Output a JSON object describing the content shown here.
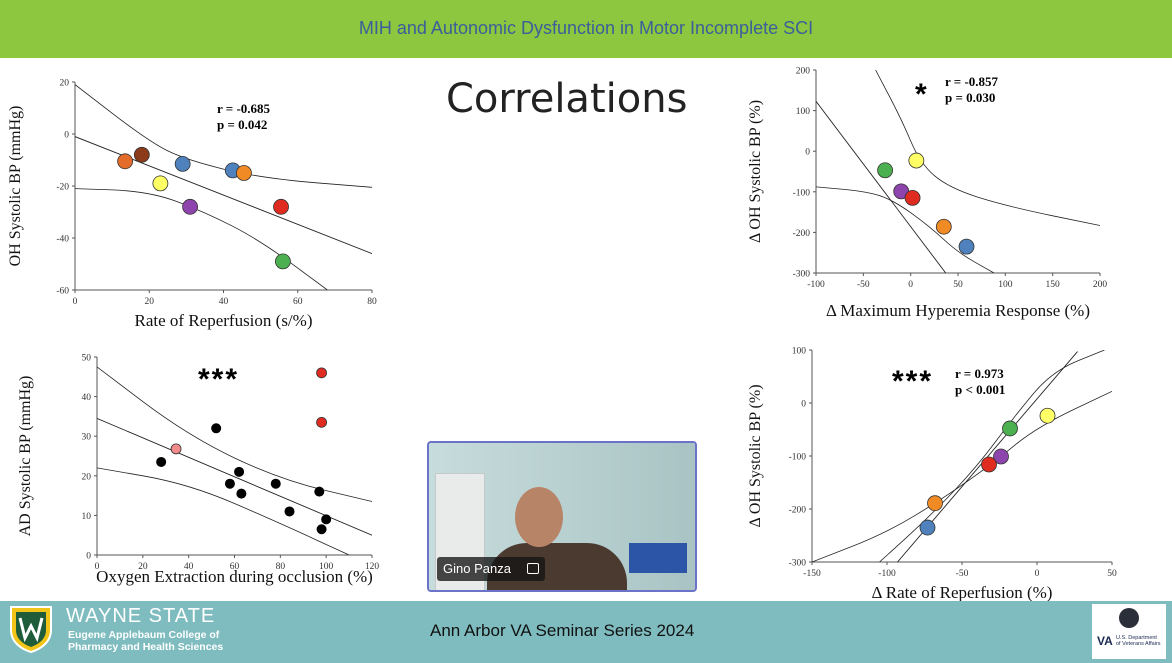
{
  "header": {
    "title": "MIH and Autonomic Dysfunction in Motor Incomplete SCI"
  },
  "slide_heading": "Correlations",
  "footer": {
    "university": "WAYNE STATE",
    "college_line1": "Eugene Applebaum College of",
    "college_line2": "Pharmacy and Health Sciences",
    "seminar": "Ann Arbor VA Seminar Series 2024",
    "va_logo_text": "VA",
    "va_dept_line1": "U.S. Department",
    "va_dept_line2": "of Veterans Affairs"
  },
  "video": {
    "participant_name": "Gino Panza"
  },
  "colors": {
    "header_green": "#8dc63f",
    "footer_teal": "#7fbcbf",
    "header_text": "#3a5f9a"
  },
  "chart_data": [
    {
      "id": "top-left",
      "type": "scatter",
      "xlabel": "Rate of Reperfusion (s/%)",
      "ylabel": "OH Systolic BP (mmHg)",
      "xlim": [
        0,
        80
      ],
      "ylim": [
        -60,
        20
      ],
      "xticks": [
        0,
        20,
        40,
        60,
        80
      ],
      "yticks": [
        -60,
        -40,
        -20,
        0,
        20
      ],
      "stats": [
        "r = -0.685",
        "p = 0.042"
      ],
      "stars": "",
      "points": [
        {
          "x": 13.5,
          "y": -10.5,
          "color": "#e46c2a"
        },
        {
          "x": 18,
          "y": -8,
          "color": "#8b3a1a"
        },
        {
          "x": 23,
          "y": -19,
          "color": "#ffff66"
        },
        {
          "x": 29,
          "y": -11.5,
          "color": "#4f81bd"
        },
        {
          "x": 31,
          "y": -28,
          "color": "#8e44ad"
        },
        {
          "x": 42.5,
          "y": -14,
          "color": "#4f81bd"
        },
        {
          "x": 45.5,
          "y": -15,
          "color": "#f08a24"
        },
        {
          "x": 55.5,
          "y": -28,
          "color": "#e02b20"
        },
        {
          "x": 56,
          "y": -49,
          "color": "#4caf50"
        }
      ],
      "fit_line": [
        [
          0,
          -1
        ],
        [
          80,
          -46
        ]
      ],
      "ci_upper": [
        [
          0,
          19
        ],
        [
          20,
          -3
        ],
        [
          30,
          -10
        ],
        [
          50,
          -17
        ],
        [
          80,
          -20.5
        ]
      ],
      "ci_lower": [
        [
          0,
          -21
        ],
        [
          20,
          -22
        ],
        [
          35,
          -30
        ],
        [
          50,
          -41
        ],
        [
          68,
          -60
        ]
      ]
    },
    {
      "id": "top-right",
      "type": "scatter",
      "xlabel": "Δ Maximum Hyperemia Response (%)",
      "ylabel": "Δ OH Systolic BP (%)",
      "xlim": [
        -100,
        200
      ],
      "ylim": [
        -300,
        200
      ],
      "xticks": [
        -100,
        -50,
        0,
        50,
        100,
        150,
        200
      ],
      "yticks": [
        -300,
        -200,
        -100,
        0,
        100,
        200
      ],
      "stats": [
        "r = -0.857",
        "p = 0.030"
      ],
      "stars": "*",
      "points": [
        {
          "x": -27,
          "y": -47,
          "color": "#4caf50"
        },
        {
          "x": 6,
          "y": -23,
          "color": "#ffff66"
        },
        {
          "x": -10,
          "y": -99,
          "color": "#8e44ad"
        },
        {
          "x": 2,
          "y": -115,
          "color": "#e02b20"
        },
        {
          "x": 35,
          "y": -186,
          "color": "#f08a24"
        },
        {
          "x": 59,
          "y": -235,
          "color": "#4f81bd"
        }
      ],
      "fit_line": [
        [
          -100,
          123
        ],
        [
          37,
          -300
        ]
      ],
      "ci_upper": [
        [
          -37,
          200
        ],
        [
          -10,
          80
        ],
        [
          10,
          -30
        ],
        [
          40,
          -90
        ],
        [
          100,
          -135
        ],
        [
          200,
          -183
        ]
      ],
      "ci_lower": [
        [
          -100,
          -88
        ],
        [
          -50,
          -98
        ],
        [
          -20,
          -118
        ],
        [
          20,
          -185
        ],
        [
          50,
          -250
        ],
        [
          88,
          -300
        ]
      ]
    },
    {
      "id": "bottom-left",
      "type": "scatter",
      "xlabel": "Oxygen Extraction during occlusion (%)",
      "ylabel": "AD Systolic BP (mmHg)",
      "xlim": [
        0,
        120
      ],
      "ylim": [
        0,
        50
      ],
      "xticks": [
        0,
        20,
        40,
        60,
        80,
        100,
        120
      ],
      "yticks": [
        0,
        10,
        20,
        30,
        40,
        50
      ],
      "stats": [],
      "stars": "***",
      "points": [
        {
          "x": 28,
          "y": 23.5,
          "color": "#000000"
        },
        {
          "x": 34.5,
          "y": 26.8,
          "color": "#f28b8b"
        },
        {
          "x": 52,
          "y": 32,
          "color": "#000000"
        },
        {
          "x": 58,
          "y": 18,
          "color": "#000000"
        },
        {
          "x": 62,
          "y": 21,
          "color": "#000000"
        },
        {
          "x": 63,
          "y": 15.5,
          "color": "#000000"
        },
        {
          "x": 78,
          "y": 18,
          "color": "#000000"
        },
        {
          "x": 84,
          "y": 11,
          "color": "#000000"
        },
        {
          "x": 97,
          "y": 16,
          "color": "#000000"
        },
        {
          "x": 98,
          "y": 46,
          "color": "#e02b20"
        },
        {
          "x": 98,
          "y": 33.5,
          "color": "#e02b20"
        },
        {
          "x": 98,
          "y": 6.5,
          "color": "#000000"
        },
        {
          "x": 100,
          "y": 9,
          "color": "#000000"
        }
      ],
      "fit_line": [
        [
          0,
          34.5
        ],
        [
          120,
          5
        ]
      ],
      "ci_upper": [
        [
          0,
          47.5
        ],
        [
          40,
          30
        ],
        [
          80,
          19
        ],
        [
          120,
          13.5
        ]
      ],
      "ci_lower": [
        [
          0,
          22
        ],
        [
          40,
          18
        ],
        [
          80,
          8
        ],
        [
          110,
          0
        ]
      ]
    },
    {
      "id": "bottom-right",
      "type": "scatter",
      "xlabel": "Δ Rate of Reperfusion (%)",
      "ylabel": "Δ OH Systolic BP (%)",
      "xlim": [
        -150,
        50
      ],
      "ylim": [
        -300,
        100
      ],
      "xticks": [
        -150,
        -100,
        -50,
        0,
        50
      ],
      "yticks": [
        -300,
        -200,
        -100,
        0,
        100
      ],
      "stats": [
        "r = 0.973",
        "p < 0.001"
      ],
      "stars": "***",
      "points": [
        {
          "x": -18,
          "y": -48,
          "color": "#4caf50"
        },
        {
          "x": 7,
          "y": -24,
          "color": "#ffff66"
        },
        {
          "x": -24,
          "y": -101,
          "color": "#8e44ad"
        },
        {
          "x": -32,
          "y": -116,
          "color": "#e02b20"
        },
        {
          "x": -68,
          "y": -189,
          "color": "#f08a24"
        },
        {
          "x": -73,
          "y": -235,
          "color": "#4f81bd"
        }
      ],
      "fit_line": [
        [
          -93,
          -300
        ],
        [
          27,
          97
        ]
      ],
      "ci_upper": [
        [
          -105,
          -300
        ],
        [
          -70,
          -210
        ],
        [
          -40,
          -120
        ],
        [
          -15,
          -25
        ],
        [
          10,
          60
        ],
        [
          45,
          100
        ]
      ],
      "ci_lower": [
        [
          -150,
          -300
        ],
        [
          -100,
          -245
        ],
        [
          -60,
          -175
        ],
        [
          -30,
          -115
        ],
        [
          0,
          -45
        ],
        [
          50,
          22
        ]
      ]
    }
  ]
}
